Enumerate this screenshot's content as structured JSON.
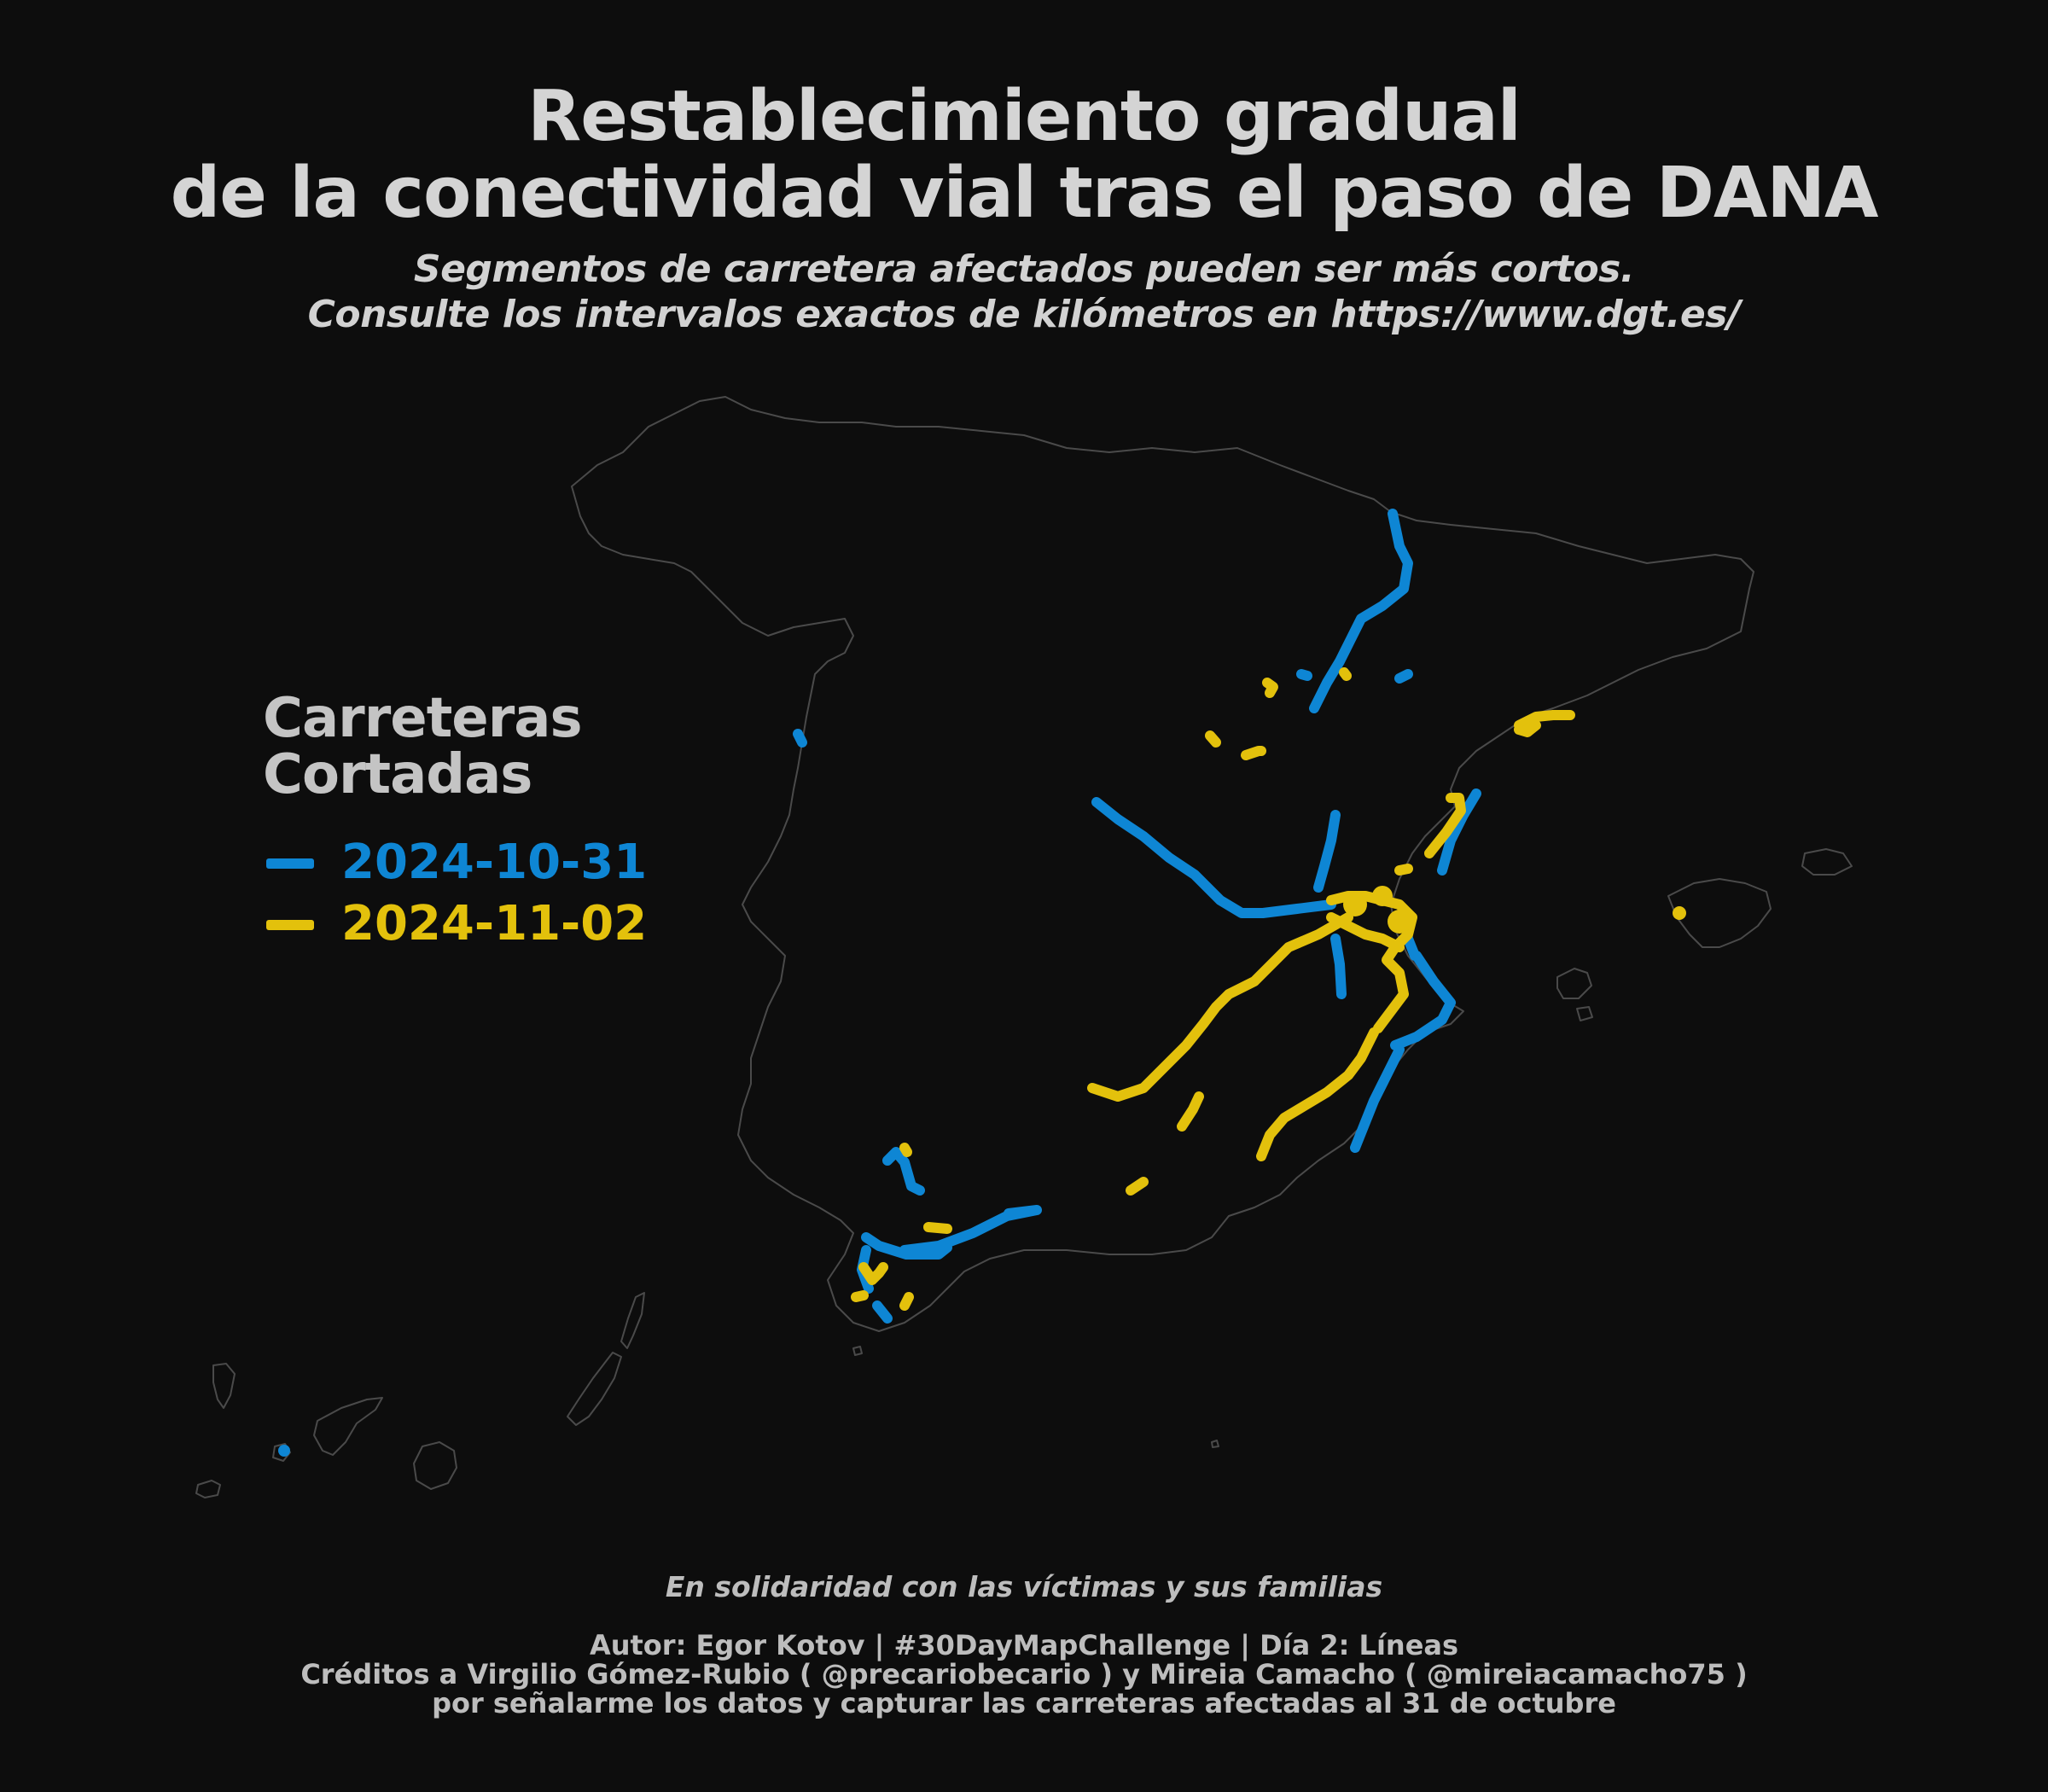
{
  "header": {
    "title_line_1": "Restablecimiento gradual",
    "title_line_2": "de la conectividad vial tras el paso de DANA",
    "subtitle_line_1": "Segmentos de carretera afectados pueden ser más cortos.",
    "subtitle_line_2": "Consulte los intervalos exactos de kilómetros en https://www.dgt.es/"
  },
  "legend": {
    "title_line_1": "Carreteras",
    "title_line_2": "Cortadas",
    "items": [
      {
        "label": "2024-10-31",
        "color": "#0e86d4"
      },
      {
        "label": "2024-11-02",
        "color": "#e3c10c"
      }
    ]
  },
  "map": {
    "background": "#0d0d0d",
    "outline_color": "#4a4a4a",
    "region": "Spain",
    "icon": "map-of-spain"
  },
  "footer": {
    "dedication": "En solidaridad con las víctimas y sus familias",
    "author": "Autor: Egor Kotov | #30DayMapChallenge | Día 2: Líneas",
    "credits": "Créditos a Virgilio Gómez-Rubio ( @precariobecario ) y Mireia Camacho ( @mireiacamacho75 )",
    "thanks": "por señalarme los datos y capturar las carreteras afectadas al 31 de octubre"
  }
}
